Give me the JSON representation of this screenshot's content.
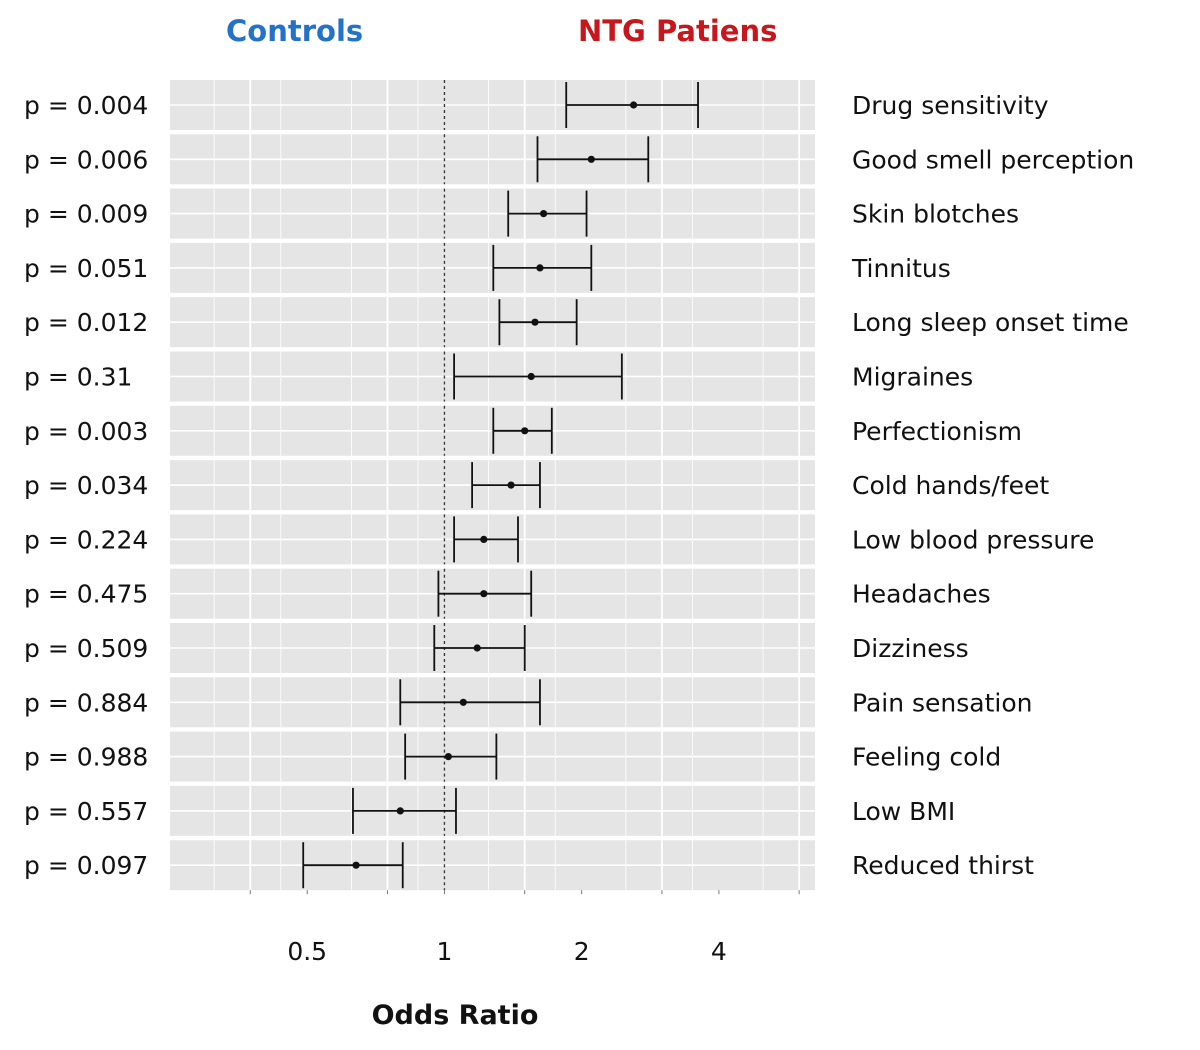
{
  "header": {
    "controls_label": "Controls",
    "patients_label": "NTG Patiens"
  },
  "colors": {
    "controls": "#2472c8",
    "patients": "#c8161d",
    "panel": "#e5e5e5",
    "grid": "#ffffff",
    "ink": "#111111"
  },
  "chart_data": {
    "type": "forest",
    "title": "",
    "xlabel": "Odds Ratio",
    "ylabel": "",
    "x_scale": "log2",
    "xlim": [
      0.25,
      6.5
    ],
    "x_ticks": [
      0.5,
      1,
      2,
      4
    ],
    "x_tick_labels": [
      "0.5",
      "1",
      "2",
      "4"
    ],
    "reference_line": 1,
    "grid": true,
    "rows": [
      {
        "label": "Drug sensitivity",
        "p": "p = 0.004",
        "or": 2.6,
        "lo": 1.85,
        "hi": 3.6
      },
      {
        "label": "Good smell perception",
        "p": "p = 0.006",
        "or": 2.1,
        "lo": 1.6,
        "hi": 2.8
      },
      {
        "label": "Skin blotches",
        "p": "p = 0.009",
        "or": 1.65,
        "lo": 1.38,
        "hi": 2.05
      },
      {
        "label": "Tinnitus",
        "p": "p = 0.051",
        "or": 1.62,
        "lo": 1.28,
        "hi": 2.1
      },
      {
        "label": "Long sleep onset time",
        "p": "p = 0.012",
        "or": 1.58,
        "lo": 1.32,
        "hi": 1.95
      },
      {
        "label": "Migraines",
        "p": "p = 0.31",
        "or": 1.55,
        "lo": 1.05,
        "hi": 2.45
      },
      {
        "label": "Perfectionism",
        "p": "p = 0.003",
        "or": 1.5,
        "lo": 1.28,
        "hi": 1.72
      },
      {
        "label": "Cold hands/feet",
        "p": "p = 0.034",
        "or": 1.4,
        "lo": 1.15,
        "hi": 1.62
      },
      {
        "label": "Low blood pressure",
        "p": "p = 0.224",
        "or": 1.22,
        "lo": 1.05,
        "hi": 1.45
      },
      {
        "label": "Headaches",
        "p": "p = 0.475",
        "or": 1.22,
        "lo": 0.97,
        "hi": 1.55
      },
      {
        "label": "Dizziness",
        "p": "p = 0.509",
        "or": 1.18,
        "lo": 0.95,
        "hi": 1.5
      },
      {
        "label": "Pain sensation",
        "p": "p = 0.884",
        "or": 1.1,
        "lo": 0.8,
        "hi": 1.62
      },
      {
        "label": "Feeling cold",
        "p": "p = 0.988",
        "or": 1.02,
        "lo": 0.82,
        "hi": 1.3
      },
      {
        "label": "Low BMI",
        "p": "p = 0.557",
        "or": 0.8,
        "lo": 0.63,
        "hi": 1.06
      },
      {
        "label": "Reduced thirst",
        "p": "p = 0.097",
        "or": 0.64,
        "lo": 0.49,
        "hi": 0.81
      }
    ]
  }
}
